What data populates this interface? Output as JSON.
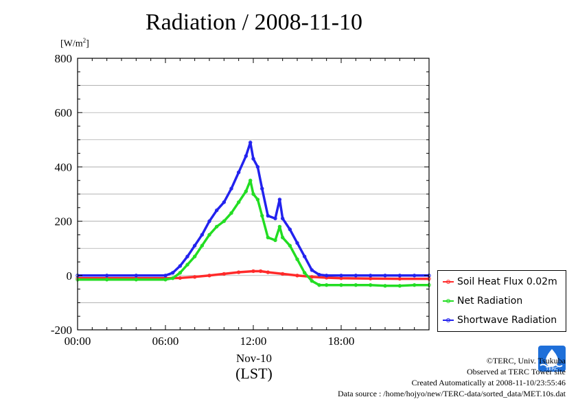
{
  "title": "Radiation / 2008-11-10",
  "unit_label": "[W/m",
  "unit_sup": "2",
  "unit_close": "]",
  "x_date_label": "Nov-10",
  "x_unit_label": "(LST)",
  "logo_text": "TERC",
  "credits": {
    "copyright": "©TERC, Univ. Tsukuba",
    "observed": "Observed at TERC Tower site",
    "created": "Created Automatically at 2008-11-10/23:55:46",
    "source": "Data source : /home/hojyo/new/TERC-data/sorted_data/MET.10s.dat"
  },
  "colors": {
    "soil": "#ff2a2a",
    "net": "#22dd22",
    "shortwave": "#2222ee",
    "grid": "#999999"
  },
  "chart_data": {
    "type": "line",
    "title": "Radiation / 2008-11-10",
    "xlabel": "Nov-10 (LST)",
    "ylabel": "[W/m2]",
    "xlim": [
      0,
      24
    ],
    "ylim": [
      -200,
      800
    ],
    "grid": true,
    "legend_position": "right-bottom, outside",
    "x_ticks": [
      {
        "value": 0,
        "label": "00:00"
      },
      {
        "value": 6,
        "label": "06:00"
      },
      {
        "value": 12,
        "label": "12:00"
      },
      {
        "value": 18,
        "label": "18:00"
      }
    ],
    "y_ticks": [
      {
        "value": 800,
        "label": "800"
      },
      {
        "value": 600,
        "label": "600"
      },
      {
        "value": 400,
        "label": "400"
      },
      {
        "value": 200,
        "label": "200"
      },
      {
        "value": 0,
        "label": "0"
      },
      {
        "value": -200,
        "label": "-200"
      }
    ],
    "series": [
      {
        "name": "Soil Heat Flux 0.02m",
        "color": "#ff2a2a",
        "x": [
          0,
          2,
          4,
          6,
          7,
          8,
          9,
          10,
          11,
          12,
          12.5,
          13,
          14,
          15,
          16,
          17,
          18,
          20,
          22,
          24
        ],
        "y": [
          -10,
          -10,
          -10,
          -10,
          -9,
          -5,
          0,
          6,
          12,
          16,
          16,
          12,
          6,
          0,
          -5,
          -8,
          -10,
          -11,
          -12,
          -12
        ]
      },
      {
        "name": "Net Radiation",
        "color": "#22dd22",
        "x": [
          0,
          2,
          4,
          6,
          6.5,
          7,
          7.5,
          8,
          8.5,
          9,
          9.5,
          10,
          10.5,
          11,
          11.5,
          11.8,
          12,
          12.3,
          12.6,
          13,
          13.5,
          13.8,
          14,
          14.5,
          15,
          15.5,
          16,
          16.5,
          17,
          18,
          19,
          20,
          21,
          22,
          23,
          24
        ],
        "y": [
          -15,
          -15,
          -15,
          -15,
          -10,
          10,
          40,
          70,
          110,
          150,
          180,
          200,
          230,
          270,
          310,
          350,
          300,
          280,
          220,
          140,
          130,
          180,
          140,
          110,
          60,
          10,
          -20,
          -35,
          -35,
          -35,
          -35,
          -35,
          -38,
          -38,
          -35,
          -35
        ]
      },
      {
        "name": "Shortwave Radiation",
        "color": "#2222ee",
        "x": [
          0,
          2,
          4,
          6,
          6.5,
          7,
          7.5,
          8,
          8.5,
          9,
          9.5,
          10,
          10.5,
          11,
          11.5,
          11.8,
          12,
          12.3,
          12.6,
          13,
          13.5,
          13.8,
          14,
          14.5,
          15,
          15.5,
          16,
          16.5,
          17,
          18,
          19,
          20,
          21,
          22,
          23,
          24
        ],
        "y": [
          0,
          0,
          0,
          0,
          10,
          35,
          70,
          110,
          150,
          200,
          240,
          270,
          320,
          380,
          440,
          490,
          430,
          400,
          320,
          220,
          210,
          280,
          210,
          170,
          120,
          70,
          20,
          3,
          0,
          0,
          0,
          0,
          0,
          0,
          0,
          0
        ]
      }
    ]
  }
}
